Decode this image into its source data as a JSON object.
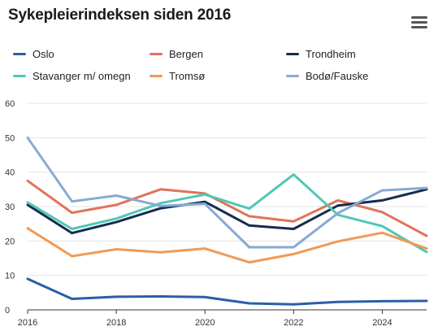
{
  "title": "Sykepleierindeksen siden 2016",
  "menu_icon": "hamburger-menu-icon",
  "chart_data": {
    "type": "line",
    "title": "Sykepleierindeksen siden 2016",
    "xlabel": "",
    "ylabel": "",
    "x": [
      2016,
      2017,
      2018,
      2019,
      2020,
      2021,
      2022,
      2023,
      2024,
      2025
    ],
    "xlim": [
      2016,
      2025
    ],
    "ylim": [
      0,
      60
    ],
    "x_ticks": [
      "2016",
      "2018",
      "2020",
      "2022",
      "2024"
    ],
    "y_ticks": [
      "0",
      "10",
      "20",
      "30",
      "40",
      "50",
      "60"
    ],
    "grid": "horizontal",
    "legend_position": "top",
    "series": [
      {
        "name": "Oslo",
        "color": "#2b5ea7",
        "values": [
          9.0,
          3.2,
          3.8,
          3.9,
          3.7,
          1.9,
          1.6,
          2.3,
          2.5,
          2.6
        ]
      },
      {
        "name": "Bergen",
        "color": "#e0735b",
        "values": [
          37.5,
          28.2,
          30.5,
          35.0,
          33.8,
          27.2,
          25.7,
          31.8,
          28.4,
          21.5
        ]
      },
      {
        "name": "Trondheim",
        "color": "#152d4f",
        "values": [
          30.5,
          22.3,
          25.5,
          29.5,
          31.4,
          24.5,
          23.5,
          30.3,
          31.8,
          35.0
        ]
      },
      {
        "name": "Stavanger m/ omegn",
        "color": "#4fc8b4",
        "values": [
          31.2,
          23.5,
          26.5,
          31.0,
          33.5,
          29.4,
          39.3,
          27.6,
          24.3,
          16.8
        ]
      },
      {
        "name": "Tromsø",
        "color": "#f09a56",
        "values": [
          23.7,
          15.6,
          17.6,
          16.7,
          17.8,
          13.8,
          16.2,
          19.9,
          22.4,
          17.8
        ]
      },
      {
        "name": "Bodø/Fauske",
        "color": "#86aad3",
        "values": [
          50.0,
          31.5,
          33.2,
          30.2,
          30.8,
          18.2,
          18.2,
          28.1,
          34.7,
          35.4
        ]
      }
    ]
  }
}
